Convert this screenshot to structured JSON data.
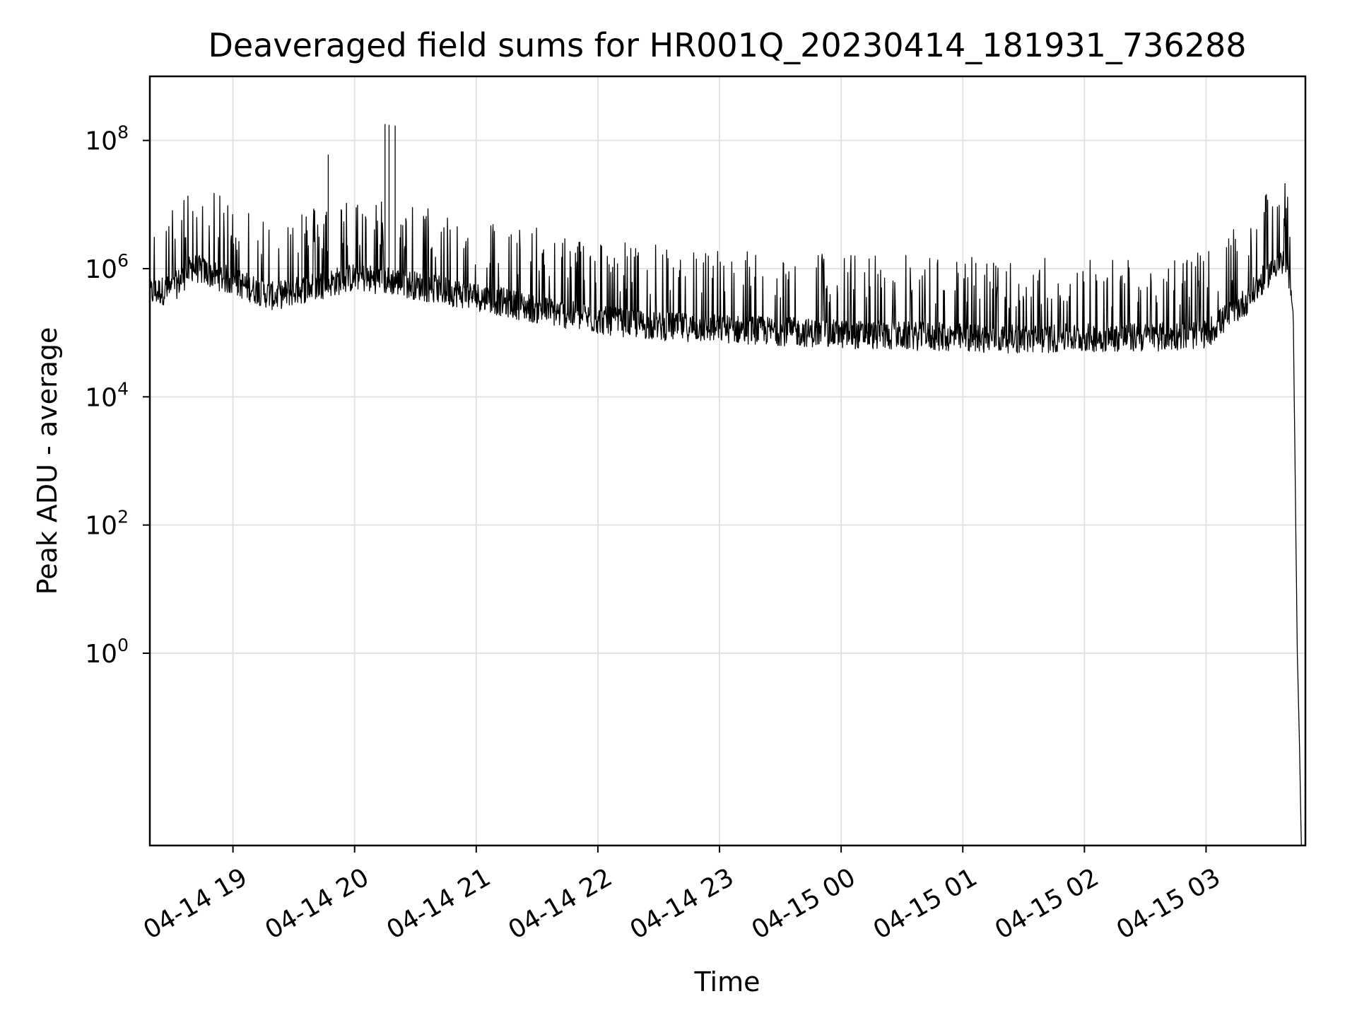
{
  "chart_data": {
    "type": "line",
    "title": "Deaveraged field sums for HR001Q_20230414_181931_736288",
    "xlabel": "Time",
    "ylabel": "Peak ADU - average",
    "y_scale": "log",
    "grid": true,
    "x_range": [
      "2023-04-14 18:19",
      "2023-04-15 03:49"
    ],
    "ylim": [
      0.001,
      1000000000
    ],
    "x_ticks": [
      "04-14 19",
      "04-14 20",
      "04-14 21",
      "04-14 22",
      "04-14 23",
      "04-15 00",
      "04-15 01",
      "04-15 02",
      "04-15 03"
    ],
    "y_ticks": [
      {
        "base": "10",
        "exp": "0",
        "value": 1
      },
      {
        "base": "10",
        "exp": "2",
        "value": 100
      },
      {
        "base": "10",
        "exp": "4",
        "value": 10000
      },
      {
        "base": "10",
        "exp": "6",
        "value": 1000000
      },
      {
        "base": "10",
        "exp": "8",
        "value": 100000000
      }
    ],
    "line_color": "#000000",
    "series": [
      {
        "x": [
          "2023-04-14 18:19",
          "2023-04-14 18:30",
          "2023-04-14 18:40",
          "2023-04-14 19:00",
          "2023-04-14 19:20",
          "2023-04-14 19:40",
          "2023-04-14 20:00",
          "2023-04-14 20:20",
          "2023-04-14 20:40",
          "2023-04-14 21:00",
          "2023-04-14 21:30",
          "2023-04-14 22:00",
          "2023-04-14 22:30",
          "2023-04-14 23:00",
          "2023-04-14 23:30",
          "2023-04-15 00:00",
          "2023-04-15 00:30",
          "2023-04-15 01:00",
          "2023-04-15 01:30",
          "2023-04-15 02:00",
          "2023-04-15 02:30",
          "2023-04-15 03:00",
          "2023-04-15 03:20",
          "2023-04-15 03:35",
          "2023-04-15 03:40",
          "2023-04-15 03:43",
          "2023-04-15 03:45",
          "2023-04-15 03:46",
          "2023-04-15 03:47"
        ],
        "y": [
          400000,
          450000,
          1000000,
          600000,
          350000,
          500000,
          700000,
          600000,
          450000,
          350000,
          220000,
          150000,
          120000,
          110000,
          100000,
          90000,
          85000,
          80000,
          75000,
          80000,
          80000,
          90000,
          300000,
          1200000,
          1100000,
          200000,
          1,
          0.05,
          0.001
        ]
      }
    ],
    "spikes": [
      {
        "x": "2023-04-14 19:34",
        "y": 7000000
      },
      {
        "x": "2023-04-14 19:47",
        "y": 60000000
      },
      {
        "x": "2023-04-14 20:15",
        "y": 180000000
      },
      {
        "x": "2023-04-14 20:17",
        "y": 175000000
      },
      {
        "x": "2023-04-14 20:20",
        "y": 170000000
      }
    ]
  }
}
